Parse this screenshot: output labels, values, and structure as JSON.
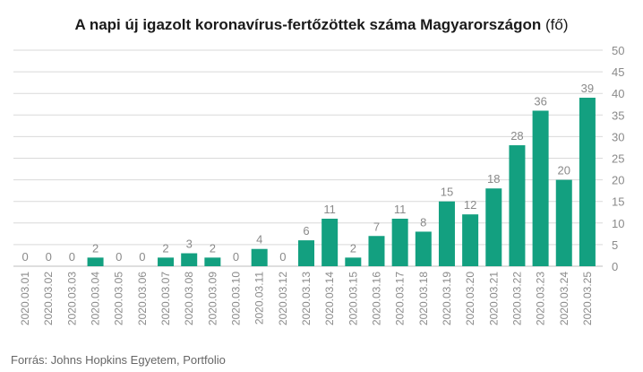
{
  "title": "A napi új igazolt koronavírus-fertőzöttek száma Magyarországon",
  "unit": "(fő)",
  "source": "Forrás: Johns Hopkins Egyetem, Portfolio",
  "colors": {
    "bar": "#13a080",
    "grid": "#d9d9d9",
    "text": "#8a8a8a"
  },
  "chart_data": {
    "type": "bar",
    "title": "A napi új igazolt koronavírus-fertőzöttek száma Magyarországon (fő)",
    "categories": [
      "2020.03.01",
      "2020.03.02",
      "2020.03.03",
      "2020.03.04",
      "2020.03.05",
      "2020.03.06",
      "2020.03.07",
      "2020.03.08",
      "2020.03.09",
      "2020.03.10",
      "2020.03.11",
      "2020.03.12",
      "2020.03.13",
      "2020.03.14",
      "2020.03.15",
      "2020.03.16",
      "2020.03.17",
      "2020.03.18",
      "2020.03.19",
      "2020.03.20",
      "2020.03.21",
      "2020.03.22",
      "2020.03.23",
      "2020.03.24",
      "2020.03.25"
    ],
    "values": [
      0,
      0,
      0,
      2,
      0,
      0,
      2,
      3,
      2,
      0,
      4,
      0,
      6,
      11,
      2,
      7,
      11,
      8,
      15,
      12,
      18,
      28,
      36,
      20,
      39
    ],
    "ylim": [
      0,
      50
    ],
    "yticks": [
      0,
      5,
      10,
      15,
      20,
      25,
      30,
      35,
      40,
      45,
      50
    ],
    "y_axis_side": "right",
    "grid": true,
    "data_labels": true
  }
}
